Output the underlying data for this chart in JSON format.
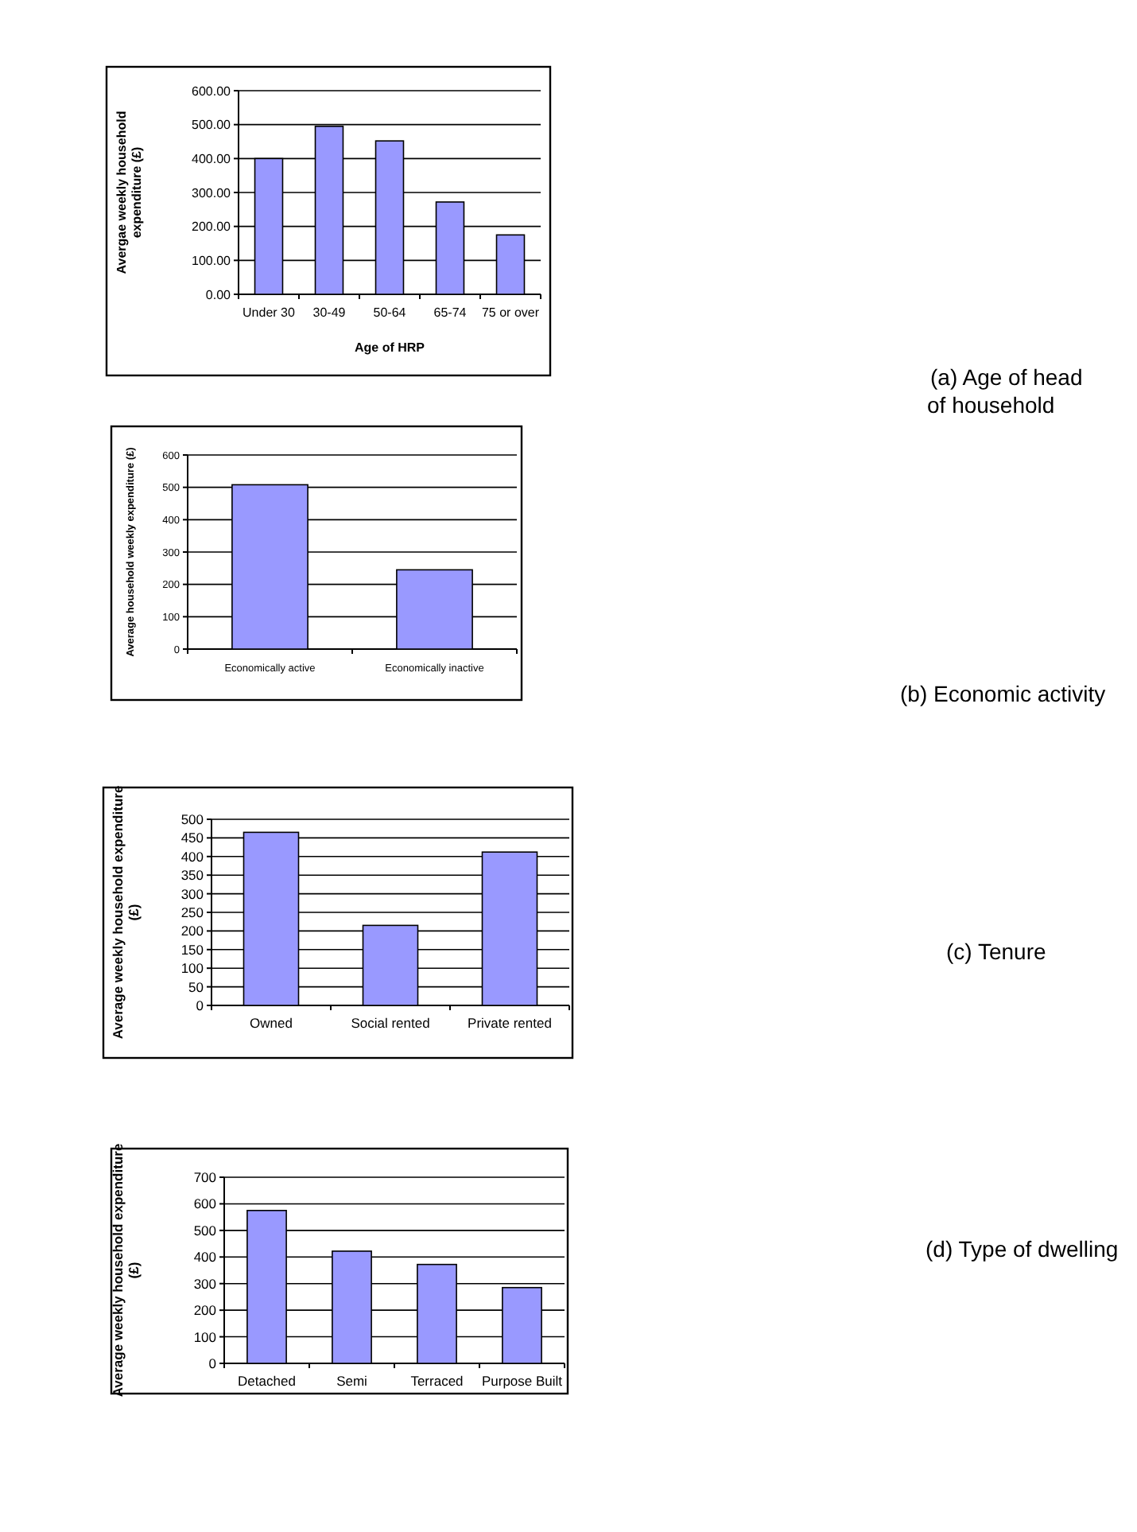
{
  "chart_data": [
    {
      "type": "bar",
      "xlabel": "Age of HRP",
      "ylabel": "Avergae weekly household expenditure (£)",
      "categories": [
        "Under 30",
        "30-49",
        "50-64",
        "65-74",
        "75 or over"
      ],
      "values": [
        400,
        495,
        452,
        272,
        175
      ],
      "color": "#9999ff",
      "ylim": [
        0,
        600
      ],
      "yticks": [
        {
          "value": 0,
          "label": "0.00"
        },
        {
          "value": 100,
          "label": "100.00"
        },
        {
          "value": 200,
          "label": "200.00"
        },
        {
          "value": 300,
          "label": "300.00"
        },
        {
          "value": 400,
          "label": "400.00"
        },
        {
          "value": 500,
          "label": "500.00"
        },
        {
          "value": 600,
          "label": "600.00"
        }
      ],
      "grid": "y",
      "annotations": [
        "(a) Age of head of household"
      ]
    },
    {
      "type": "bar",
      "ylabel": "Average household weekly expenditure (£)",
      "categories": [
        "Economically active",
        "Economically inactive"
      ],
      "values": [
        508,
        245
      ],
      "color": "#9999ff",
      "ylim": [
        0,
        600
      ],
      "yticks": [
        0,
        100,
        200,
        300,
        400,
        500,
        600
      ],
      "grid": "y",
      "annotations": [
        "(b) Economic activity"
      ]
    },
    {
      "type": "bar",
      "ylabel": "Average weekly household expenditure (£)",
      "categories": [
        "Owned",
        "Social rented",
        "Private rented"
      ],
      "values": [
        465,
        215,
        412
      ],
      "color": "#9999ff",
      "ylim": [
        0,
        500
      ],
      "yticks": [
        0,
        50,
        100,
        150,
        200,
        250,
        300,
        350,
        400,
        450,
        500
      ],
      "grid": "y",
      "annotations": [
        "(c) Tenure"
      ]
    },
    {
      "type": "bar",
      "ylabel": "Average weekly household expenditure (£)",
      "categories": [
        "Detached",
        "Semi",
        "Terraced",
        "Purpose Built"
      ],
      "values": [
        575,
        422,
        372,
        285
      ],
      "color": "#9999ff",
      "ylim": [
        0,
        700
      ],
      "yticks": [
        0,
        100,
        200,
        300,
        400,
        500,
        600,
        700
      ],
      "grid": "y",
      "annotations": [
        "(d) Type of dwelling"
      ]
    }
  ]
}
